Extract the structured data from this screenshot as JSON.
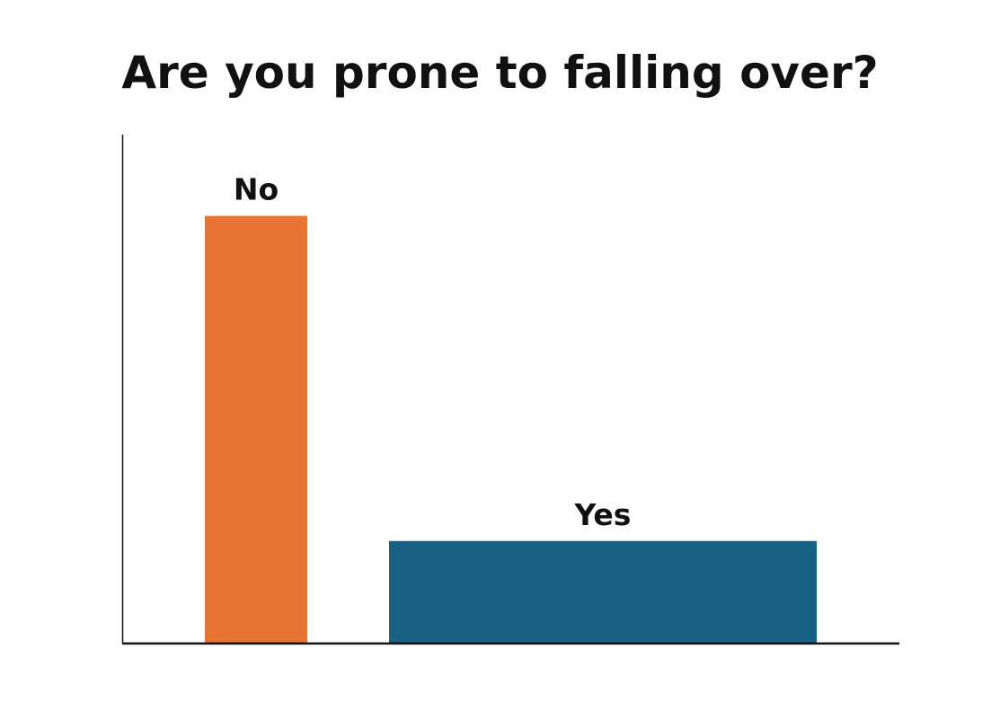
{
  "chart_data": {
    "type": "bar",
    "title": "Are you prone to falling over?",
    "categories": [
      "No",
      "Yes"
    ],
    "values": [
      84,
      20
    ],
    "colors": [
      "#e87433",
      "#186184"
    ],
    "xlabel": "",
    "ylabel": "",
    "ylim": [
      0,
      100
    ],
    "grid": false,
    "legend": "none",
    "y_ticks_shown": false
  }
}
